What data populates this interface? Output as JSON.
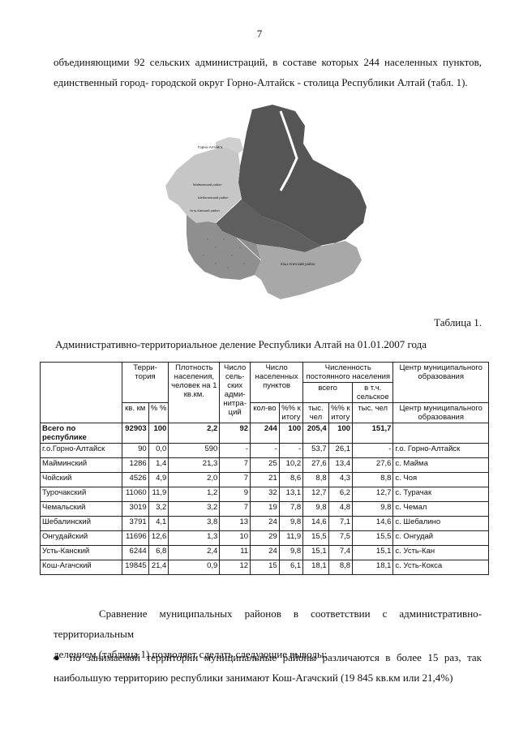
{
  "page_number": "7",
  "intro": {
    "line1": "объединяющими 92 сельских администраций, в составе которых 244 населенных пунктов,",
    "line2": "единственный город- городской округ Горно-Алтайск - столица Республики Алтай (табл. 1)."
  },
  "map": {
    "labels": {
      "gorno": "Горно-Алтайск",
      "mayma": "Майминский район",
      "shebalino": "Шебалинский район",
      "ust_kan": "Усть-Канский район",
      "kosh": "Кош-Агачский район"
    },
    "colors": {
      "dark": "#555555",
      "medium": "#9a9a9a",
      "light": "#c8c8c8",
      "lighter": "#b4b4b4"
    }
  },
  "table_label": "Таблица 1.",
  "table_title": "Административно-территориальное деление Республики Алтай на 01.01.2007 года",
  "table": {
    "headers": {
      "territory": "Терри-\nтория",
      "density": "Плотность населения, человек на 1 кв.км.",
      "admins": "Число сель-ских адми-нитра-ций",
      "settlements": "Число населенных пунктов",
      "population": "Численность постоянного населения",
      "center": "Центр муниципального образования",
      "total": "всего",
      "rural": "в т.ч. сельское",
      "sqkm": "кв. км",
      "pct": "% %",
      "count": "кол-во",
      "pct_total": "%% к итогу",
      "thous": "тыс. чел",
      "pct_total2": "%% к итогу",
      "thous2": "тыс. чел",
      "center_repeat": "Центр муниципального образования"
    },
    "total_row": {
      "name": "Всего по республике",
      "area": "92903",
      "pct": "100",
      "density": "2,2",
      "admins": "92",
      "settle": "244",
      "settle_pct": "100",
      "pop": "205,4",
      "pop_pct": "100",
      "rural": "151,7"
    },
    "rows": [
      {
        "name": "г.о.Горно-Алтайск",
        "area": "90",
        "pct": "0,0",
        "density": "590",
        "admins": "-",
        "settle": "-",
        "settle_pct": "-",
        "pop": "53,7",
        "pop_pct": "26,1",
        "rural": "-",
        "center": "г.о. Горно-Алтайск"
      },
      {
        "name": "Майминский",
        "area": "1286",
        "pct": "1,4",
        "density": "21,3",
        "admins": "7",
        "settle": "25",
        "settle_pct": "10,2",
        "pop": "27,6",
        "pop_pct": "13,4",
        "rural": "27,6",
        "center": "с.  Майма"
      },
      {
        "name": "Чойский",
        "area": "4526",
        "pct": "4,9",
        "density": "2,0",
        "admins": "7",
        "settle": "21",
        "settle_pct": "8,6",
        "pop": "8,8",
        "pop_pct": "4,3",
        "rural": "8,8",
        "center": "с.  Чоя"
      },
      {
        "name": "Турочакский",
        "area": "11060",
        "pct": "11,9",
        "density": "1,2",
        "admins": "9",
        "settle": "32",
        "settle_pct": "13,1",
        "pop": "12,7",
        "pop_pct": "6,2",
        "rural": "12,7",
        "center": "с. Турачак"
      },
      {
        "name": "Чемальский",
        "area": "3019",
        "pct": "3,2",
        "density": "3,2",
        "admins": "7",
        "settle": "19",
        "settle_pct": "7,8",
        "pop": "9,8",
        "pop_pct": "4,8",
        "rural": "9,8",
        "center": "с. Чемал"
      },
      {
        "name": "Шебалинский",
        "area": "3791",
        "pct": "4,1",
        "density": "3,8",
        "admins": "13",
        "settle": "24",
        "settle_pct": "9,8",
        "pop": "14,6",
        "pop_pct": "7,1",
        "rural": "14,6",
        "center": "с. Шебалино"
      },
      {
        "name": "Онгудайский",
        "area": "11696",
        "pct": "12,6",
        "density": "1,3",
        "admins": "10",
        "settle": "29",
        "settle_pct": "11,9",
        "pop": "15,5",
        "pop_pct": "7,5",
        "rural": "15,5",
        "center": "с. Онгудай"
      },
      {
        "name": "Усть-Канский",
        "area": "6244",
        "pct": "6,8",
        "density": "2,4",
        "admins": "11",
        "settle": "24",
        "settle_pct": "9,8",
        "pop": "15,1",
        "pop_pct": "7,4",
        "rural": "15,1",
        "center": "с. Усть-Кан"
      },
      {
        "name": "Кош-Агачский",
        "area": "19845",
        "pct": "21,4",
        "density": "0,9",
        "admins": "12",
        "settle": "15",
        "settle_pct": "6,1",
        "pop": "18,1",
        "pop_pct": "8,8",
        "rural": "18,1",
        "center": "с. Усть-Кокса"
      }
    ]
  },
  "conclusion": {
    "line1": "Сравнение муниципальных районов в соответствии с административно-территориальным",
    "line2": "делением (таблица 1) позволяет сделать следующие выводы:"
  },
  "bullet": {
    "line1": "по занимаемой территории муниципальные районы различаются в более 15 раз, так",
    "line2": "наибольшую территорию республики занимают Кош-Агачский (19 845 кв.км или 21,4%)"
  }
}
